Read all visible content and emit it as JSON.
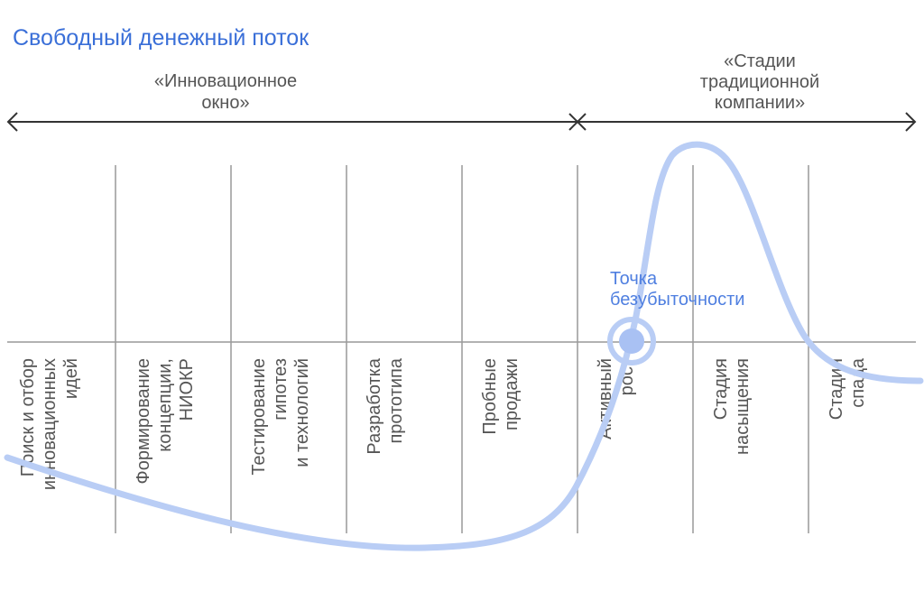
{
  "title": "Свободный денежный поток",
  "periods": [
    {
      "lines": [
        "«Инновационное",
        "окно»"
      ]
    },
    {
      "lines": [
        "«Стадии",
        "традиционной",
        "компании»"
      ]
    }
  ],
  "stages": [
    {
      "lines": [
        "Поиск и отбор",
        "инновационных",
        "идей"
      ]
    },
    {
      "lines": [
        "Формирование",
        "концепции,",
        "НИОКР"
      ]
    },
    {
      "lines": [
        "Тестирование",
        "гипотез",
        "и технологий"
      ]
    },
    {
      "lines": [
        "Разработка",
        "прототипа"
      ]
    },
    {
      "lines": [
        "Пробные",
        "продажи"
      ]
    },
    {
      "lines": [
        "Активный",
        "рост"
      ]
    },
    {
      "lines": [
        "Стадия",
        "насыщения"
      ]
    },
    {
      "lines": [
        "Стадия",
        "спада"
      ]
    }
  ],
  "breakeven": {
    "lines": [
      "Точка",
      "безубыточности"
    ]
  },
  "colors": {
    "title": "#3a6fd8",
    "curve": "#b9cdf5",
    "point": "#a9c1f3",
    "axis": "#999999",
    "arrow": "#333333"
  }
}
